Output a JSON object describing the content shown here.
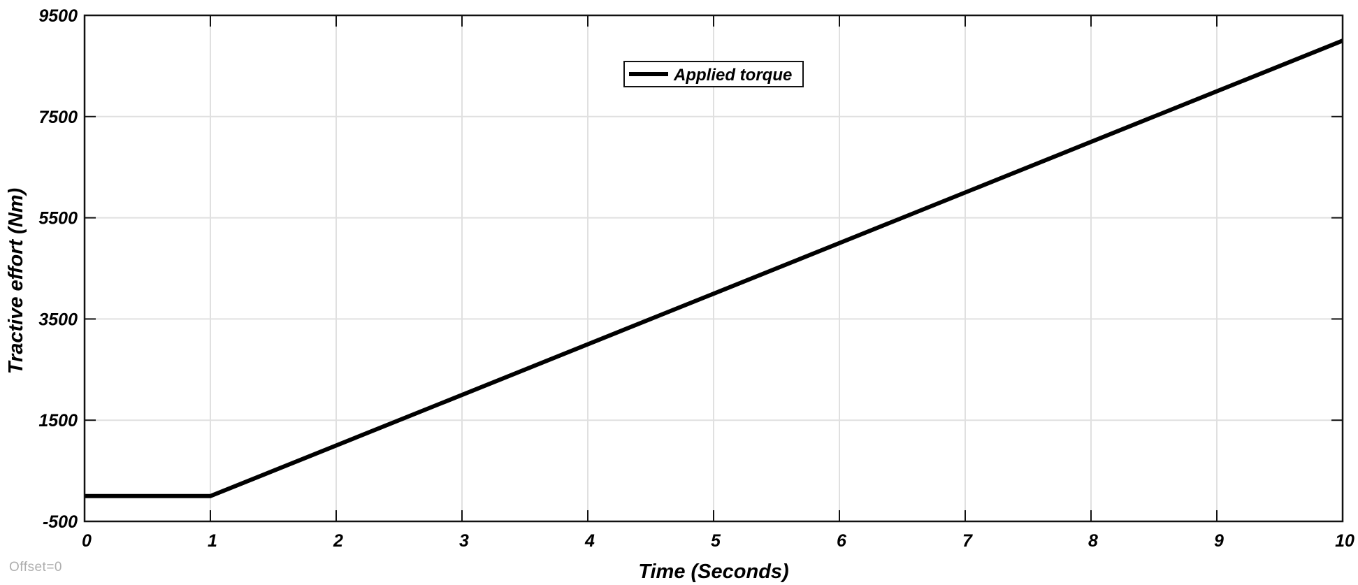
{
  "status": {
    "offset_label": "Offset=0"
  },
  "colors": {
    "background": "#ffffff",
    "axis": "#111111",
    "grid": "#e0e0e0",
    "series": "#000000",
    "tick_label": "#000000",
    "axis_label": "#000000",
    "legend_border": "#111111",
    "legend_background": "#ffffff",
    "offset_text": "#aeaeae"
  },
  "chart_data": {
    "type": "line",
    "title": "",
    "xlabel": "Time (Seconds)",
    "ylabel": "Tractive effort (Nm)",
    "xlim": [
      0,
      10
    ],
    "ylim": [
      -500,
      9500
    ],
    "xticks": [
      0,
      1,
      2,
      3,
      4,
      5,
      6,
      7,
      8,
      9,
      10
    ],
    "yticks": [
      -500,
      1500,
      3500,
      5500,
      7500,
      9500
    ],
    "grid": true,
    "legend": {
      "position": "top-center",
      "entries": [
        {
          "label": "Applied torque"
        }
      ]
    },
    "series": [
      {
        "name": "Applied torque",
        "points": [
          [
            0,
            0
          ],
          [
            1,
            0
          ],
          [
            10,
            9000
          ]
        ]
      }
    ]
  }
}
